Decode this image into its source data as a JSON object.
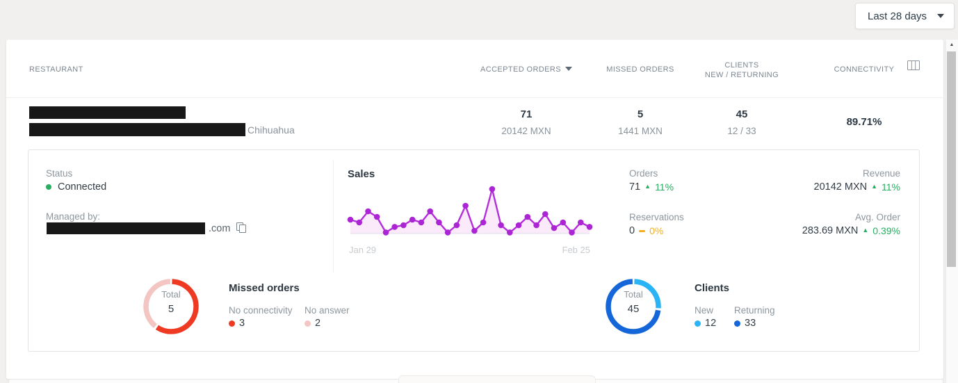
{
  "colors": {
    "positive_green": "#27ae60",
    "neutral_yellow": "#f2b01e",
    "accent_purple": "#b32ddb",
    "missed_red": "#ee3a23",
    "missed_pink": "#f3c6c4",
    "clients_light_blue": "#2ab4f5",
    "clients_dark_blue": "#1566d8",
    "status_green": "#27ae60"
  },
  "icons": {
    "scroll_up": "▲"
  },
  "toolbar": {
    "date_range_label": "Last 28 days"
  },
  "table": {
    "header": {
      "restaurant": "RESTAURANT",
      "accepted": "ACCEPTED ORDERS",
      "missed": "MISSED ORDERS",
      "clients_top": "CLIENTS",
      "clients_bottom": "NEW / RETURNING",
      "connectivity": "CONNECTIVITY"
    },
    "row": {
      "location": "Chihuahua",
      "accepted_count": "71",
      "accepted_amount": "20142 MXN",
      "missed_count": "5",
      "missed_amount": "1441 MXN",
      "clients_total": "45",
      "clients_split": "12 / 33",
      "connectivity": "89.71%"
    }
  },
  "detail": {
    "status": {
      "label": "Status",
      "value": "Connected"
    },
    "managed": {
      "label": "Managed by:",
      "suffix": ".com"
    },
    "sales": {
      "title": "Sales",
      "start": "Jan 29",
      "end": "Feb 25"
    },
    "metrics": {
      "orders": {
        "label": "Orders",
        "value": "71",
        "delta": "11%"
      },
      "revenue": {
        "label": "Revenue",
        "value": "20142 MXN",
        "delta": "11%"
      },
      "reservations": {
        "label": "Reservations",
        "value": "0",
        "delta": "0%"
      },
      "avg_order": {
        "label": "Avg. Order",
        "value": "283.69 MXN",
        "delta": "0.39%"
      }
    },
    "missed": {
      "title": "Missed orders",
      "center_label": "Total",
      "center_value": "5",
      "legend": [
        {
          "label": "No connectivity",
          "value": "3",
          "color": "#ee3a23"
        },
        {
          "label": "No answer",
          "value": "2",
          "color": "#f3c6c4"
        }
      ]
    },
    "clients": {
      "title": "Clients",
      "center_label": "Total",
      "center_value": "45",
      "legend": [
        {
          "label": "New",
          "value": "12",
          "color": "#2ab4f5"
        },
        {
          "label": "Returning",
          "value": "33",
          "color": "#1566d8"
        }
      ]
    }
  },
  "chart_data": [
    {
      "type": "line",
      "name": "sales-daily",
      "title": "Sales",
      "x_days": 28,
      "x_range_labels": [
        "Jan 29",
        "Feb 25"
      ],
      "values": [
        2.5,
        2,
        4,
        3,
        0.2,
        1.2,
        1.5,
        2.5,
        2,
        4,
        2,
        0.2,
        1.5,
        5,
        0.5,
        2,
        8,
        1.5,
        0.2,
        1.5,
        3,
        1.5,
        3.5,
        1,
        2,
        0.2,
        2,
        1.2
      ],
      "ylim": [
        0,
        8
      ],
      "grid": false,
      "legend": "none",
      "colors": {
        "line": "#b32ddb",
        "dot": "#ac25d4",
        "fill": "#fbeaf9",
        "baseline": "#dcdcea"
      }
    },
    {
      "type": "pie",
      "name": "missed-orders",
      "title": "Missed orders",
      "labels": [
        "No connectivity",
        "No answer"
      ],
      "values": [
        3,
        2
      ],
      "total": 5,
      "colors": [
        "#ee3a23",
        "#f3c6c4"
      ],
      "legend": "right"
    },
    {
      "type": "pie",
      "name": "clients",
      "title": "Clients",
      "labels": [
        "New",
        "Returning"
      ],
      "values": [
        12,
        33
      ],
      "total": 45,
      "colors": [
        "#2ab4f5",
        "#1566d8"
      ],
      "legend": "right"
    }
  ]
}
